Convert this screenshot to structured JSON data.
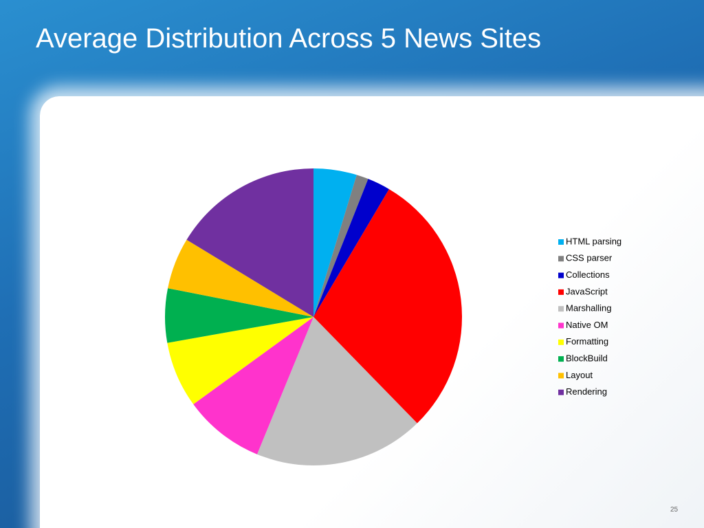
{
  "chart_data": {
    "type": "pie",
    "title": "Average Distribution Across 5 News Sites",
    "categories": [
      "HTML parsing",
      "CSS parser",
      "Collections",
      "JavaScript",
      "Marshalling",
      "Native OM",
      "Formatting",
      "BlockBuild",
      "Layout",
      "Rendering"
    ],
    "values": [
      4.7,
      1.3,
      2.5,
      29.2,
      18.5,
      8.8,
      7.2,
      5.9,
      5.6,
      16.3
    ],
    "colors": [
      "#00b0f0",
      "#808080",
      "#0000cc",
      "#ff0000",
      "#c0c0c0",
      "#ff33cc",
      "#ffff00",
      "#00b050",
      "#ffc000",
      "#7030a0"
    ],
    "legend": "right"
  },
  "page_number": "25"
}
